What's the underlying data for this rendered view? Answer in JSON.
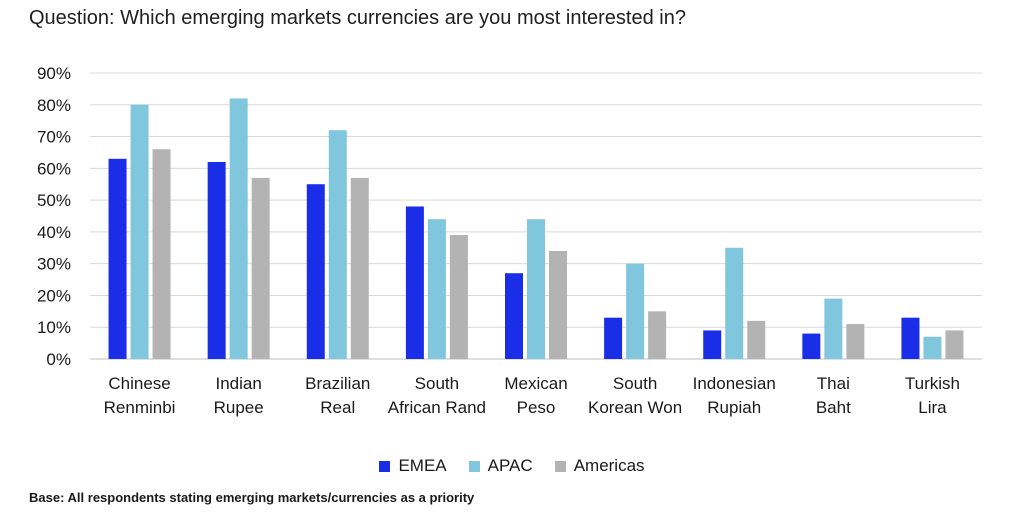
{
  "chart_data": {
    "type": "bar",
    "title": "Question: Which emerging markets currencies are you most interested in?",
    "categories": [
      [
        "Chinese",
        "Renminbi"
      ],
      [
        "Indian",
        "Rupee"
      ],
      [
        "Brazilian",
        "Real"
      ],
      [
        "South",
        "African Rand"
      ],
      [
        "Mexican",
        "Peso"
      ],
      [
        "South",
        "Korean Won"
      ],
      [
        "Indonesian",
        "Rupiah"
      ],
      [
        "Thai",
        "Baht"
      ],
      [
        "Turkish",
        "Lira"
      ]
    ],
    "series": [
      {
        "name": "EMEA",
        "color": "#1a2ee8",
        "values": [
          63,
          62,
          55,
          48,
          27,
          13,
          9,
          8,
          13
        ]
      },
      {
        "name": "APAC",
        "color": "#80c6dc",
        "values": [
          80,
          82,
          72,
          44,
          44,
          30,
          35,
          19,
          7
        ]
      },
      {
        "name": "Americas",
        "color": "#b3b3b3",
        "values": [
          66,
          57,
          57,
          39,
          34,
          15,
          12,
          11,
          9
        ]
      }
    ],
    "yticks": [
      "0%",
      "10%",
      "20%",
      "30%",
      "40%",
      "50%",
      "60%",
      "70%",
      "80%",
      "90%"
    ],
    "ylim": [
      0,
      90
    ],
    "grid": true,
    "legend": "bottom-center",
    "xlabel": "",
    "ylabel": ""
  },
  "footnote": "Base: All respondents stating emerging markets/currencies as a priority"
}
